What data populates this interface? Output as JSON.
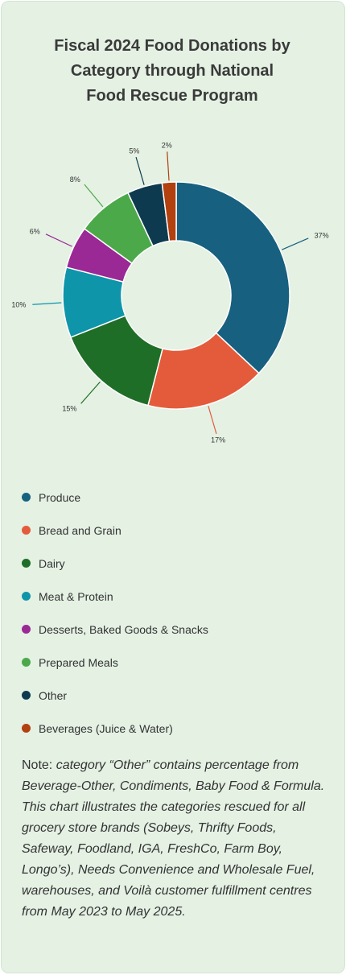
{
  "colors": {
    "background": "#e4f1e3",
    "produce": "#17607f",
    "bread": "#e45b3b",
    "dairy": "#1f6e27",
    "meat": "#0e95a9",
    "desserts": "#9a2895",
    "prepared": "#4ca94a",
    "other": "#0e3a4f",
    "beverages": "#b3400f"
  },
  "chart_data": {
    "type": "pie",
    "style": "donut",
    "title": "Fiscal 2024 Food Donations by Category through National Food Rescue Program",
    "title_lines": [
      "Fiscal 2024 Food Donations by",
      "Category through National",
      "Food Rescue Program"
    ],
    "categories": [
      "Produce",
      "Bread and Grain",
      "Dairy",
      "Meat & Protein",
      "Desserts, Baked Goods & Snacks",
      "Prepared Meals",
      "Other",
      "Beverages (Juice & Water)"
    ],
    "values": [
      37,
      17,
      15,
      10,
      6,
      8,
      5,
      2
    ],
    "labels": [
      "37%",
      "17%",
      "15%",
      "10%",
      "6%",
      "8%",
      "5%",
      "2%"
    ],
    "slice_colors": [
      "#17607f",
      "#e45b3b",
      "#1f6e27",
      "#0e95a9",
      "#9a2895",
      "#4ca94a",
      "#0e3a4f",
      "#b3400f"
    ],
    "legend_position": "bottom",
    "unit": "%"
  },
  "note": {
    "prefix": "Note: ",
    "text": "category “Other” contains percentage from Beverage-Other, Condiments, Baby Food & Formula. This chart illustrates the categories rescued for all grocery store brands (Sobeys, Thrifty Foods, Safeway, Foodland, IGA, FreshCo, Farm Boy, Longo’s), Needs Convenience and Wholesale Fuel, warehouses, and Voilà customer fulfillment centres from May 2023 to May 2025."
  }
}
